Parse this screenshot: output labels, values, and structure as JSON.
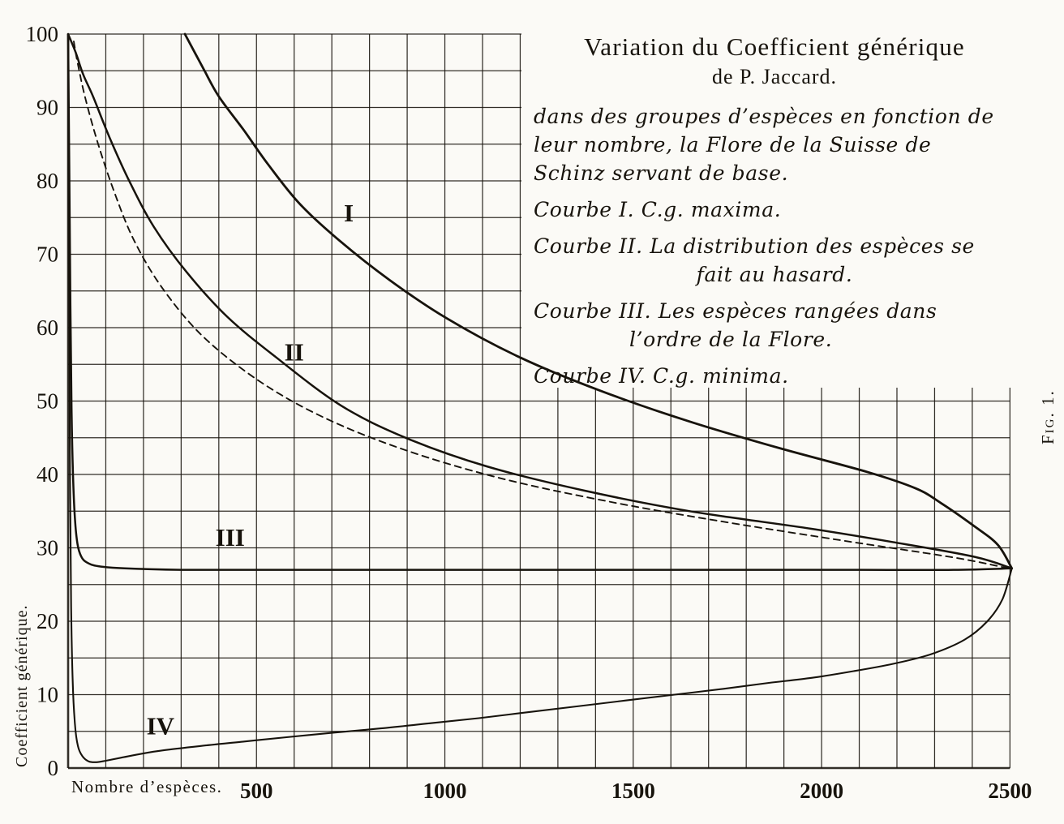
{
  "figure": {
    "fig_label": "Fig. 1.",
    "background": "#fbfaf6",
    "ink": "#17130c"
  },
  "title": {
    "line1": "Variation du Coefficient générique",
    "line2": "de P. Jaccard."
  },
  "legend_lines": [
    {
      "text": "dans des groupes d’espèces en fonction de"
    },
    {
      "text": "leur nombre, la Flore de la Suisse de"
    },
    {
      "text": "Schinz servant de base."
    },
    {
      "text": "Courbe I. C.g. maxima.",
      "gap": true
    },
    {
      "text": "Courbe II. La distribution des espèces se",
      "gap": true
    },
    {
      "text": "fait au hasard.",
      "center": true
    },
    {
      "text": "Courbe III. Les espèces rangées dans",
      "gap": true
    },
    {
      "text": "l’ordre de la Flore.",
      "indent": true
    },
    {
      "text": "Courbe IV. C.g. minima.",
      "gap": true
    }
  ],
  "axes": {
    "x_label": "Nombre d’espèces.",
    "y_label": "Coefficient générique.",
    "x_ticks": [
      500,
      1000,
      1500,
      2000,
      2500
    ],
    "y_ticks": [
      0,
      10,
      20,
      30,
      40,
      50,
      60,
      70,
      80,
      90,
      100
    ]
  },
  "chart_data": {
    "type": "line",
    "title": "Variation du Coefficient générique de P. Jaccard",
    "xlabel": "Nombre d’espèces",
    "ylabel": "Coefficient générique",
    "x_range": [
      0,
      2510
    ],
    "y_range": [
      0,
      100
    ],
    "x_grid_step": 100,
    "x_grid_max": 2500,
    "y_grid_step": 5,
    "grid": true,
    "legend_position": "top-right",
    "series": [
      {
        "name": "Courbe I — C.g. maxima",
        "label": "I",
        "dashed": false,
        "points": [
          [
            310,
            100
          ],
          [
            360,
            95.2
          ],
          [
            400,
            91.5
          ],
          [
            465,
            87
          ],
          [
            530,
            82.3
          ],
          [
            616,
            76.8
          ],
          [
            724,
            71.7
          ],
          [
            853,
            66.5
          ],
          [
            1004,
            61.3
          ],
          [
            1197,
            56
          ],
          [
            1413,
            51.4
          ],
          [
            1650,
            47.2
          ],
          [
            1887,
            43.6
          ],
          [
            2124,
            40.3
          ],
          [
            2250,
            38.1
          ],
          [
            2317,
            36.1
          ],
          [
            2404,
            33
          ],
          [
            2468,
            30.4
          ],
          [
            2505,
            27.2
          ]
        ]
      },
      {
        "name": "Courbe II — la distribution des espèces se fait au hasard",
        "label": "II",
        "dashed": false,
        "points": [
          [
            0,
            100
          ],
          [
            20,
            97.5
          ],
          [
            40,
            94.5
          ],
          [
            67,
            91.4
          ],
          [
            110,
            85.9
          ],
          [
            164,
            79.8
          ],
          [
            228,
            73.7
          ],
          [
            314,
            67.6
          ],
          [
            422,
            61.5
          ],
          [
            551,
            56
          ],
          [
            724,
            49.4
          ],
          [
            896,
            45
          ],
          [
            1111,
            41.1
          ],
          [
            1370,
            37.8
          ],
          [
            1650,
            35
          ],
          [
            1973,
            32.6
          ],
          [
            2188,
            30.8
          ],
          [
            2404,
            28.8
          ],
          [
            2505,
            27.2
          ]
        ]
      },
      {
        "name": "courbe en tirets (non légendée)",
        "label": "",
        "dashed": true,
        "points": [
          [
            15,
            99
          ],
          [
            24,
            96.4
          ],
          [
            45,
            91.4
          ],
          [
            78,
            85.3
          ],
          [
            121,
            78.7
          ],
          [
            174,
            72
          ],
          [
            250,
            65.4
          ],
          [
            358,
            58.8
          ],
          [
            508,
            52.7
          ],
          [
            681,
            47.7
          ],
          [
            896,
            43.3
          ],
          [
            1154,
            39.4
          ],
          [
            1456,
            36.1
          ],
          [
            1758,
            33.4
          ],
          [
            2081,
            30.8
          ],
          [
            2361,
            28.6
          ],
          [
            2505,
            27.1
          ]
        ]
      },
      {
        "name": "Courbe III — les espèces rangées dans l’ordre de la Flore",
        "label": "III",
        "dashed": false,
        "points": [
          [
            0,
            100
          ],
          [
            3,
            82
          ],
          [
            6,
            63
          ],
          [
            9,
            49
          ],
          [
            13,
            40
          ],
          [
            18,
            34
          ],
          [
            25,
            30.5
          ],
          [
            35,
            28.8
          ],
          [
            50,
            28
          ],
          [
            80,
            27.5
          ],
          [
            150,
            27.2
          ],
          [
            300,
            27
          ],
          [
            600,
            27
          ],
          [
            1000,
            27
          ],
          [
            1400,
            27
          ],
          [
            1800,
            27
          ],
          [
            2100,
            27
          ],
          [
            2350,
            27
          ],
          [
            2505,
            27.2
          ]
        ]
      },
      {
        "name": "Courbe IV — C.g. minima",
        "label": "IV",
        "dashed": false,
        "points": [
          [
            0,
            100
          ],
          [
            2,
            72
          ],
          [
            5,
            40
          ],
          [
            8,
            22
          ],
          [
            12,
            12
          ],
          [
            18,
            6
          ],
          [
            26,
            3
          ],
          [
            38,
            1.6
          ],
          [
            55,
            0.9
          ],
          [
            75,
            0.8
          ],
          [
            100,
            1
          ],
          [
            140,
            1.4
          ],
          [
            190,
            1.9
          ],
          [
            250,
            2.4
          ],
          [
            350,
            3
          ],
          [
            465,
            3.6
          ],
          [
            580,
            4.2
          ],
          [
            700,
            4.8
          ],
          [
            830,
            5.4
          ],
          [
            960,
            6.1
          ],
          [
            1090,
            6.8
          ],
          [
            1220,
            7.6
          ],
          [
            1350,
            8.4
          ],
          [
            1480,
            9.2
          ],
          [
            1610,
            10
          ],
          [
            1740,
            10.8
          ],
          [
            1860,
            11.6
          ],
          [
            1975,
            12.3
          ],
          [
            2085,
            13.2
          ],
          [
            2190,
            14.2
          ],
          [
            2290,
            15.5
          ],
          [
            2380,
            17.5
          ],
          [
            2440,
            20
          ],
          [
            2480,
            23
          ],
          [
            2505,
            27.2
          ]
        ]
      }
    ],
    "curve_labels": [
      {
        "text": "I",
        "x": 745,
        "y": 74.5
      },
      {
        "text": "II",
        "x": 600,
        "y": 55.5
      },
      {
        "text": "III",
        "x": 430,
        "y": 30.3
      },
      {
        "text": "IV",
        "x": 245,
        "y": 4.6
      }
    ],
    "convergence_point": [
      2505,
      27.2
    ]
  }
}
